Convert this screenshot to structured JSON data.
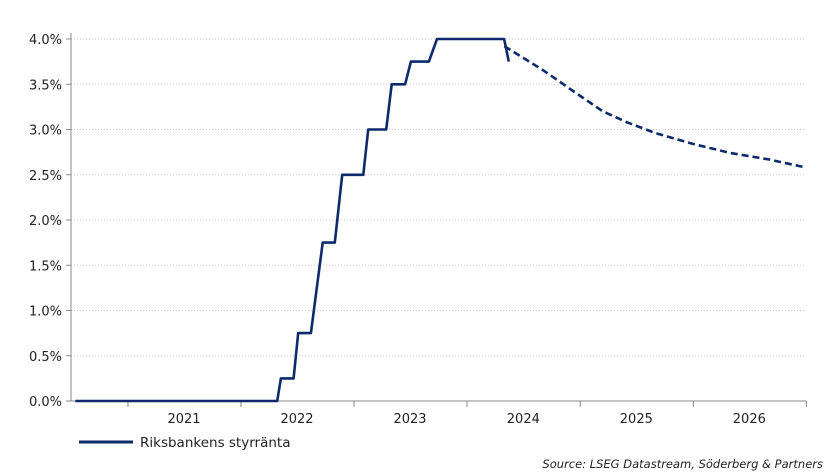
{
  "chart_data": {
    "type": "line",
    "title": "",
    "xlabel": "",
    "ylabel": "",
    "x_tick_labels": [
      "2021",
      "2022",
      "2023",
      "2024",
      "2025",
      "2026"
    ],
    "y_tick_labels": [
      "0.0%",
      "0.5%",
      "1.0%",
      "1.5%",
      "2.0%",
      "2.5%",
      "3.0%",
      "3.5%",
      "4.0%"
    ],
    "ylim": [
      0,
      4
    ],
    "xlim": [
      "2020-07-01",
      "2026-12-31"
    ],
    "grid": "horizontal dotted",
    "legend_position": "bottom-left",
    "colors": {
      "series": "#0d2b6b",
      "grid": "#c8c8c8",
      "axis": "#888888"
    },
    "series": [
      {
        "name": "Riksbankens styrränta",
        "style": "solid",
        "points": [
          [
            "2020-07-15",
            0.0
          ],
          [
            "2022-04-28",
            0.0
          ],
          [
            "2022-05-10",
            0.25
          ],
          [
            "2022-06-20",
            0.25
          ],
          [
            "2022-07-05",
            0.75
          ],
          [
            "2022-08-15",
            0.75
          ],
          [
            "2022-09-22",
            1.75
          ],
          [
            "2022-10-31",
            1.75
          ],
          [
            "2022-11-24",
            2.5
          ],
          [
            "2023-01-31",
            2.5
          ],
          [
            "2023-02-16",
            3.0
          ],
          [
            "2023-04-15",
            3.0
          ],
          [
            "2023-05-03",
            3.5
          ],
          [
            "2023-06-15",
            3.5
          ],
          [
            "2023-07-04",
            3.75
          ],
          [
            "2023-08-31",
            3.75
          ],
          [
            "2023-09-26",
            4.0
          ],
          [
            "2024-04-30",
            4.0
          ],
          [
            "2024-05-15",
            3.75
          ]
        ]
      },
      {
        "name": "",
        "style": "dashed",
        "points": [
          [
            "2024-05-01",
            3.92
          ],
          [
            "2024-09-01",
            3.66
          ],
          [
            "2025-01-01",
            3.37
          ],
          [
            "2025-03-15",
            3.2
          ],
          [
            "2025-06-01",
            3.08
          ],
          [
            "2025-09-01",
            2.96
          ],
          [
            "2026-01-01",
            2.84
          ],
          [
            "2026-05-01",
            2.74
          ],
          [
            "2026-09-01",
            2.67
          ],
          [
            "2026-12-31",
            2.58
          ]
        ]
      }
    ],
    "source": "Source: LSEG Datastream, Söderberg & Partners"
  }
}
